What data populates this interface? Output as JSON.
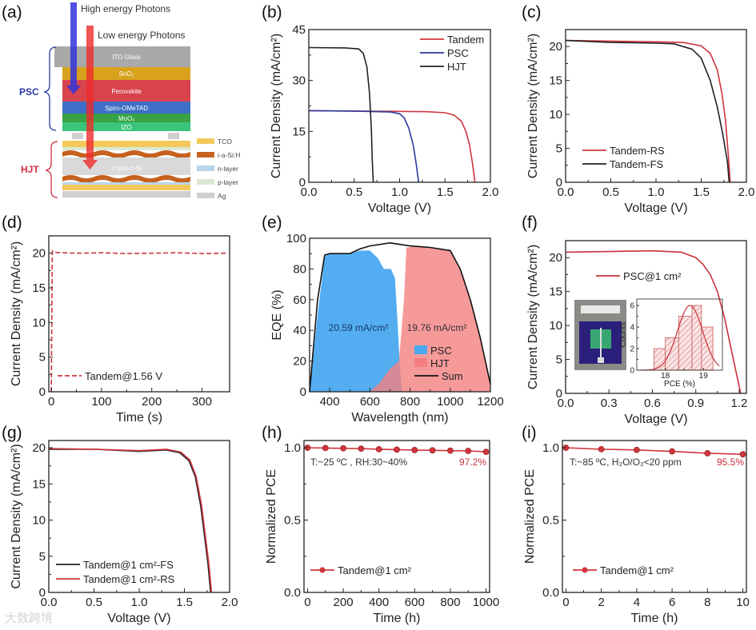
{
  "diagram": {
    "panel_label": "(a)",
    "high_energy": "High energy Photons",
    "low_energy": "Low energy Photons",
    "psc_label": "PSC",
    "hjt_label": "HJT",
    "layers": [
      "ITO Glass",
      "SnO₂",
      "Perovskite",
      "Spiro-OMeTAD",
      "MoOₓ",
      "IZO",
      "n type c-Si"
    ],
    "legend": [
      "TCO",
      "i-a-Si:H",
      "n-layer",
      "p-layer",
      "Ag"
    ],
    "colors": {
      "ito": "#a9a9a9",
      "sno2": "#d9a21c",
      "perovskite": "#d8434c",
      "spiro": "#3e6ec6",
      "moox": "#37a246",
      "izo": "#3bc47c",
      "tco": "#f3c95c",
      "iasih": "#c5621f",
      "nlayer": "#b9d6ea",
      "player": "#dbe8d3",
      "ag": "#cfcfcf"
    }
  },
  "watermark": "大数跨境",
  "chart_data": [
    {
      "id": "b",
      "panel_label": "(b)",
      "type": "line",
      "xlabel": "Voltage (V)",
      "ylabel": "Current Density (mA/cm²)",
      "xlim": [
        0,
        2
      ],
      "ylim": [
        0,
        45
      ],
      "xticks": [
        0,
        0.5,
        1,
        1.5,
        2
      ],
      "xtick_labels": [
        "0.0",
        "0.5",
        "1.0",
        "1.5",
        "2.0"
      ],
      "yticks": [
        0,
        15,
        30,
        45
      ],
      "ytick_labels": [
        "0",
        "15",
        "30",
        "45"
      ],
      "series": [
        {
          "name": "Tandem",
          "color": "#d0343c",
          "points": [
            [
              0,
              21.1
            ],
            [
              0.5,
              21
            ],
            [
              1,
              20.9
            ],
            [
              1.3,
              20.8
            ],
            [
              1.5,
              20.5
            ],
            [
              1.6,
              19.8
            ],
            [
              1.68,
              18
            ],
            [
              1.73,
              15
            ],
            [
              1.77,
              11
            ],
            [
              1.8,
              6
            ],
            [
              1.83,
              0
            ]
          ]
        },
        {
          "name": "PSC",
          "color": "#2b3a9a",
          "points": [
            [
              0,
              21.1
            ],
            [
              0.5,
              21
            ],
            [
              0.9,
              20.7
            ],
            [
              1,
              20.2
            ],
            [
              1.05,
              19
            ],
            [
              1.1,
              16
            ],
            [
              1.15,
              11
            ],
            [
              1.18,
              6
            ],
            [
              1.21,
              0
            ]
          ]
        },
        {
          "name": "HJT",
          "color": "#222222",
          "points": [
            [
              0,
              39.7
            ],
            [
              0.4,
              39.6
            ],
            [
              0.55,
              39.3
            ],
            [
              0.6,
              38
            ],
            [
              0.64,
              34
            ],
            [
              0.67,
              26
            ],
            [
              0.69,
              15
            ],
            [
              0.7,
              6
            ],
            [
              0.71,
              0
            ]
          ]
        }
      ]
    },
    {
      "id": "c",
      "panel_label": "(c)",
      "type": "line",
      "xlabel": "Voltage (V)",
      "ylabel": "Current Density (mA/cm²)",
      "xlim": [
        0,
        2
      ],
      "ylim": [
        0,
        22.5
      ],
      "xticks": [
        0,
        0.5,
        1,
        1.5,
        2
      ],
      "xtick_labels": [
        "0.0",
        "0.5",
        "1.0",
        "1.5",
        "2.0"
      ],
      "yticks": [
        0,
        5,
        10,
        15,
        20
      ],
      "ytick_labels": [
        "0",
        "5",
        "10",
        "15",
        "20"
      ],
      "series": [
        {
          "name": "Tandem-RS",
          "color": "#d0343c",
          "points": [
            [
              0,
              20.9
            ],
            [
              0.5,
              20.8
            ],
            [
              1,
              20.7
            ],
            [
              1.3,
              20.6
            ],
            [
              1.5,
              20.1
            ],
            [
              1.6,
              19
            ],
            [
              1.68,
              16.5
            ],
            [
              1.73,
              13
            ],
            [
              1.77,
              9
            ],
            [
              1.8,
              4
            ],
            [
              1.82,
              0
            ]
          ]
        },
        {
          "name": "Tandem-FS",
          "color": "#222222",
          "points": [
            [
              0,
              20.9
            ],
            [
              0.5,
              20.6
            ],
            [
              1,
              20.5
            ],
            [
              1.2,
              20.4
            ],
            [
              1.4,
              19.6
            ],
            [
              1.5,
              18.3
            ],
            [
              1.6,
              15
            ],
            [
              1.68,
              11
            ],
            [
              1.74,
              7
            ],
            [
              1.79,
              3
            ],
            [
              1.81,
              0
            ]
          ]
        }
      ]
    },
    {
      "id": "d",
      "panel_label": "(d)",
      "type": "line",
      "xlabel": "Time (s)",
      "ylabel": "Current Density (mA/cm²)",
      "xlim": [
        -5,
        355
      ],
      "ylim": [
        0,
        22.5
      ],
      "xticks": [
        0,
        100,
        200,
        300
      ],
      "xtick_labels": [
        "0",
        "100",
        "200",
        "300"
      ],
      "yticks": [
        0,
        5,
        10,
        15,
        20
      ],
      "ytick_labels": [
        "0",
        "5",
        "10",
        "15",
        "20"
      ],
      "series": [
        {
          "name": "Tandem@1.56 V",
          "color": "#d0343c",
          "dash": true,
          "points": [
            [
              0,
              0
            ],
            [
              2,
              20.3
            ],
            [
              10,
              20.1
            ],
            [
              50,
              20.0
            ],
            [
              100,
              20.05
            ],
            [
              150,
              19.95
            ],
            [
              200,
              20.0
            ],
            [
              250,
              20.05
            ],
            [
              300,
              19.95
            ],
            [
              350,
              20.0
            ]
          ]
        }
      ]
    },
    {
      "id": "e",
      "panel_label": "(e)",
      "type": "area",
      "xlabel": "Wavelength (nm)",
      "ylabel": "EQE (%)",
      "xlim": [
        300,
        1200
      ],
      "ylim": [
        0,
        100
      ],
      "xticks": [
        400,
        600,
        800,
        1000,
        1200
      ],
      "xtick_labels": [
        "400",
        "600",
        "800",
        "1000",
        "1200"
      ],
      "yticks": [
        0,
        20,
        40,
        60,
        80,
        100
      ],
      "ytick_labels": [
        "0",
        "20",
        "40",
        "60",
        "80",
        "100"
      ],
      "annotations": [
        "20.59 mA/cm²",
        "19.76 mA/cm²"
      ],
      "series": [
        {
          "name": "PSC",
          "color": "#4aa9ef",
          "fill": true,
          "points": [
            [
              300,
              0
            ],
            [
              340,
              50
            ],
            [
              375,
              88
            ],
            [
              400,
              90
            ],
            [
              500,
              90
            ],
            [
              550,
              92
            ],
            [
              600,
              92
            ],
            [
              640,
              87
            ],
            [
              670,
              80
            ],
            [
              705,
              80
            ],
            [
              725,
              74
            ],
            [
              740,
              40
            ],
            [
              750,
              15
            ],
            [
              760,
              0
            ]
          ]
        },
        {
          "name": "HJT",
          "color": "#f47f80",
          "fill": true,
          "points": [
            [
              600,
              0
            ],
            [
              650,
              6
            ],
            [
              700,
              15
            ],
            [
              745,
              20
            ],
            [
              770,
              60
            ],
            [
              782,
              94
            ],
            [
              850,
              95
            ],
            [
              950,
              93
            ],
            [
              1000,
              92
            ],
            [
              1050,
              80
            ],
            [
              1100,
              60
            ],
            [
              1150,
              35
            ],
            [
              1200,
              5
            ],
            [
              1200,
              0
            ]
          ]
        },
        {
          "name": "Sum",
          "color": "#111111",
          "points": [
            [
              300,
              0
            ],
            [
              340,
              60
            ],
            [
              375,
              89
            ],
            [
              400,
              90
            ],
            [
              500,
              90
            ],
            [
              550,
              93
            ],
            [
              600,
              95
            ],
            [
              700,
              97
            ],
            [
              750,
              96
            ],
            [
              800,
              95
            ],
            [
              900,
              94
            ],
            [
              1000,
              92
            ],
            [
              1050,
              80
            ],
            [
              1100,
              60
            ],
            [
              1150,
              35
            ],
            [
              1200,
              5
            ]
          ]
        }
      ]
    },
    {
      "id": "f",
      "panel_label": "(f)",
      "type": "line",
      "xlabel": "Voltage (V)",
      "ylabel": "Current Density (mA/cm²)",
      "xlim": [
        0,
        1.25
      ],
      "ylim": [
        0,
        22.5
      ],
      "xticks": [
        0,
        0.3,
        0.6,
        0.9,
        1.2
      ],
      "xtick_labels": [
        "0.0",
        "0.3",
        "0.6",
        "0.9",
        "1.2"
      ],
      "yticks": [
        0,
        5,
        10,
        15,
        20
      ],
      "ytick_labels": [
        "0",
        "5",
        "10",
        "15",
        "20"
      ],
      "series": [
        {
          "name": "PSC@1 cm²",
          "color": "#c8323a",
          "points": [
            [
              0,
              20.8
            ],
            [
              0.3,
              20.9
            ],
            [
              0.6,
              21
            ],
            [
              0.8,
              20.8
            ],
            [
              0.9,
              20
            ],
            [
              0.95,
              19
            ],
            [
              1,
              17.5
            ],
            [
              1.05,
              15
            ],
            [
              1.1,
              11
            ],
            [
              1.15,
              6
            ],
            [
              1.2,
              1
            ],
            [
              1.21,
              0
            ]
          ]
        }
      ]
    },
    {
      "id": "g",
      "panel_label": "(g)",
      "type": "line",
      "xlabel": "Voltage (V)",
      "ylabel": "Current Density (mA/cm²)",
      "xlim": [
        0,
        2
      ],
      "ylim": [
        0,
        21
      ],
      "xticks": [
        0,
        0.5,
        1,
        1.5,
        2
      ],
      "xtick_labels": [
        "0.0",
        "0.5",
        "1.0",
        "1.5",
        "2.0"
      ],
      "yticks": [
        0,
        5,
        10,
        15,
        20
      ],
      "ytick_labels": [
        "0",
        "5",
        "10",
        "15",
        "20"
      ],
      "series": [
        {
          "name": "Tandem@1 cm²-FS",
          "color": "#222222",
          "points": [
            [
              0,
              19.8
            ],
            [
              0.5,
              19.8
            ],
            [
              1,
              19.5
            ],
            [
              1.3,
              19.7
            ],
            [
              1.45,
              19.3
            ],
            [
              1.55,
              18.2
            ],
            [
              1.62,
              16
            ],
            [
              1.68,
              12
            ],
            [
              1.72,
              8
            ],
            [
              1.76,
              4
            ],
            [
              1.79,
              0
            ]
          ]
        },
        {
          "name": "Tandem@1 cm²-RS",
          "color": "#d0343c",
          "points": [
            [
              0,
              19.9
            ],
            [
              0.5,
              19.8
            ],
            [
              1,
              19.6
            ],
            [
              1.3,
              19.8
            ],
            [
              1.46,
              19.4
            ],
            [
              1.56,
              18.3
            ],
            [
              1.63,
              16
            ],
            [
              1.69,
              12
            ],
            [
              1.73,
              8
            ],
            [
              1.77,
              4
            ],
            [
              1.8,
              0
            ]
          ]
        }
      ]
    },
    {
      "id": "h",
      "panel_label": "(h)",
      "type": "line",
      "xlabel": "Time (h)",
      "ylabel": "Normalized PCE",
      "xlim": [
        -20,
        1020
      ],
      "ylim": [
        0,
        1.05
      ],
      "xticks": [
        0,
        200,
        400,
        600,
        800,
        1000
      ],
      "xtick_labels": [
        "0",
        "200",
        "400",
        "600",
        "800",
        "1000"
      ],
      "yticks": [
        0,
        0.5,
        1
      ],
      "ytick_labels": [
        "0.0",
        "0.5",
        "1.0"
      ],
      "annotations": [
        "T:~25 ºC , RH:30~40%",
        "97.2%"
      ],
      "series": [
        {
          "name": "Tandem@1 cm²",
          "color": "#d0343c",
          "markers": true,
          "points": [
            [
              0,
              1
            ],
            [
              100,
              0.998
            ],
            [
              200,
              0.996
            ],
            [
              300,
              0.994
            ],
            [
              400,
              0.99
            ],
            [
              500,
              0.987
            ],
            [
              600,
              0.984
            ],
            [
              700,
              0.982
            ],
            [
              800,
              0.98
            ],
            [
              900,
              0.978
            ],
            [
              1000,
              0.972
            ]
          ]
        }
      ]
    },
    {
      "id": "i",
      "panel_label": "(i)",
      "type": "line",
      "xlabel": "Time (h)",
      "ylabel": "Normalized PCE",
      "xlim": [
        -0.2,
        10.2
      ],
      "ylim": [
        0,
        1.05
      ],
      "xticks": [
        0,
        2,
        4,
        6,
        8,
        10
      ],
      "xtick_labels": [
        "0",
        "2",
        "4",
        "6",
        "8",
        "10"
      ],
      "yticks": [
        0,
        0.5,
        1
      ],
      "ytick_labels": [
        "0.0",
        "0.5",
        "1.0"
      ],
      "annotations": [
        "T:~85 ºC, H₂O/O₂<20 ppm",
        "95.5%"
      ],
      "series": [
        {
          "name": "Tandem@1 cm²",
          "color": "#d0343c",
          "markers": true,
          "points": [
            [
              0,
              1
            ],
            [
              2,
              0.99
            ],
            [
              4,
              0.985
            ],
            [
              6,
              0.975
            ],
            [
              8,
              0.962
            ],
            [
              10,
              0.955
            ]
          ]
        }
      ]
    },
    {
      "id": "f-inset",
      "panel_label": "",
      "type": "bar",
      "xlabel": "PCE (%)",
      "ylabel": "Counts",
      "xlim": [
        17.25,
        19.5
      ],
      "ylim": [
        0,
        6.6
      ],
      "xticks": [
        18,
        19
      ],
      "xtick_labels": [
        "18",
        "19"
      ],
      "yticks": [
        0,
        2,
        4,
        6
      ],
      "ytick_labels": [
        "0",
        "2",
        "4",
        "6"
      ],
      "bins": [
        17.7,
        18.0,
        18.35,
        18.7,
        18.95,
        19.25
      ],
      "counts": [
        2,
        3,
        5,
        6,
        4
      ],
      "fit": {
        "mean": 18.65,
        "sd": 0.33,
        "amp": 6
      },
      "series": []
    }
  ]
}
